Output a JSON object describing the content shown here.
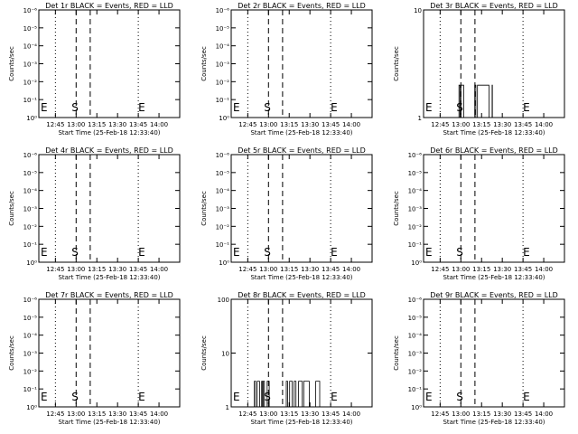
{
  "colors": {
    "background": "#ffffff",
    "axes": "#000000",
    "events": "#000000",
    "lld": "#ff0000"
  },
  "chart_data": [
    {
      "type": "line",
      "title": "Det 1r BLACK = Events, RED = LLD",
      "xlabel": "Start Time (25-Feb-18 12:33:40)",
      "ylabel": "Counts/sec",
      "x_ticks": [
        "12:45",
        "13:00",
        "13:15",
        "13:30",
        "13:45",
        "14:00"
      ],
      "y_scale": "log",
      "y_ticks": [
        "10⁰",
        "10⁻¹",
        "10⁻²",
        "10⁻³",
        "10⁻⁴",
        "10⁻⁵",
        "10⁻⁶"
      ],
      "markers": {
        "start": "S",
        "end": "E",
        "left_edge": "E"
      },
      "series": []
    },
    {
      "type": "line",
      "title": "Det 2r BLACK = Events, RED = LLD",
      "xlabel": "Start Time (25-Feb-18 12:33:40)",
      "ylabel": "Counts/sec",
      "x_ticks": [
        "12:45",
        "13:00",
        "13:15",
        "13:30",
        "13:45",
        "14:00"
      ],
      "y_scale": "log",
      "y_ticks": [
        "10⁰",
        "10⁻¹",
        "10⁻²",
        "10⁻³",
        "10⁻⁴",
        "10⁻⁵",
        "10⁻⁶"
      ],
      "markers": {
        "start": "S",
        "end": "E",
        "left_edge": "E"
      },
      "series": []
    },
    {
      "type": "line",
      "title": "Det 3r BLACK = Events, RED = LLD",
      "xlabel": "Start Time (25-Feb-18 12:33:40)",
      "ylabel": "Counts/sec",
      "x_ticks": [
        "12:45",
        "13:00",
        "13:15",
        "13:30",
        "13:45",
        "14:00"
      ],
      "y_scale": "log",
      "y_ticks": [
        "1",
        "10"
      ],
      "markers": {
        "start": "S",
        "end": "E",
        "left_edge": "E"
      },
      "series": [
        {
          "segments": [
            [
              12.95,
              13.04
            ],
            [
              13.16,
              13.38
            ]
          ],
          "low": 1,
          "high": 2
        }
      ]
    },
    {
      "type": "line",
      "title": "Det 4r BLACK = Events, RED = LLD",
      "xlabel": "Start Time (25-Feb-18 12:33:40)",
      "ylabel": "Counts/sec",
      "x_ticks": [
        "12:45",
        "13:00",
        "13:15",
        "13:30",
        "13:45",
        "14:00"
      ],
      "y_scale": "log",
      "y_ticks": [
        "10⁰",
        "10⁻¹",
        "10⁻²",
        "10⁻³",
        "10⁻⁴",
        "10⁻⁵",
        "10⁻⁶"
      ],
      "markers": {
        "start": "S",
        "end": "E",
        "left_edge": "E"
      },
      "series": []
    },
    {
      "type": "line",
      "title": "Det 5r BLACK = Events, RED = LLD",
      "xlabel": "Start Time (25-Feb-18 12:33:40)",
      "ylabel": "Counts/sec",
      "x_ticks": [
        "12:45",
        "13:00",
        "13:15",
        "13:30",
        "13:45",
        "14:00"
      ],
      "y_scale": "log",
      "y_ticks": [
        "10⁰",
        "10⁻¹",
        "10⁻²",
        "10⁻³",
        "10⁻⁴",
        "10⁻⁵",
        "10⁻⁶"
      ],
      "markers": {
        "start": "S",
        "end": "E",
        "left_edge": "E"
      },
      "series": []
    },
    {
      "type": "line",
      "title": "Det 6r BLACK = Events, RED = LLD",
      "xlabel": "Start Time (25-Feb-18 12:33:40)",
      "ylabel": "Counts/sec",
      "x_ticks": [
        "12:45",
        "13:00",
        "13:15",
        "13:30",
        "13:45",
        "14:00"
      ],
      "y_scale": "log",
      "y_ticks": [
        "10⁰",
        "10⁻¹",
        "10⁻²",
        "10⁻³",
        "10⁻⁴",
        "10⁻⁵",
        "10⁻⁶"
      ],
      "markers": {
        "start": "S",
        "end": "E",
        "left_edge": "E"
      },
      "series": []
    },
    {
      "type": "line",
      "title": "Det 7r BLACK = Events, RED = LLD",
      "xlabel": "Start Time (25-Feb-18 12:33:40)",
      "ylabel": "Counts/sec",
      "x_ticks": [
        "12:45",
        "13:00",
        "13:15",
        "13:30",
        "13:45",
        "14:00"
      ],
      "y_scale": "log",
      "y_ticks": [
        "10⁰",
        "10⁻¹",
        "10⁻²",
        "10⁻³",
        "10⁻⁴",
        "10⁻⁵",
        "10⁻⁶"
      ],
      "markers": {
        "start": "S",
        "end": "E",
        "left_edge": "E"
      },
      "series": []
    },
    {
      "type": "line",
      "title": "Det 8r BLACK = Events, RED = LLD",
      "xlabel": "Start Time (25-Feb-18 12:33:40)",
      "ylabel": "Counts/sec",
      "x_ticks": [
        "12:45",
        "13:00",
        "13:15",
        "13:30",
        "13:45",
        "14:00"
      ],
      "y_scale": "log",
      "y_ticks": [
        "1",
        "10",
        "100"
      ],
      "markers": {
        "start": "S",
        "end": "E",
        "left_edge": "E"
      },
      "series": [
        {
          "segments": [
            [
              12.8,
              13.04
            ],
            [
              13.2,
              13.63
            ]
          ],
          "low": 1,
          "high": 3
        }
      ]
    },
    {
      "type": "line",
      "title": "Det 9r BLACK = Events, RED = LLD",
      "xlabel": "Start Time (25-Feb-18 12:33:40)",
      "ylabel": "Counts/sec",
      "x_ticks": [
        "12:45",
        "13:00",
        "13:15",
        "13:30",
        "13:45",
        "14:00"
      ],
      "y_scale": "log",
      "y_ticks": [
        "10⁰",
        "10⁻¹",
        "10⁻²",
        "10⁻³",
        "10⁻⁴",
        "10⁻⁵",
        "10⁻⁶"
      ],
      "markers": {
        "start": "S",
        "end": "E",
        "left_edge": "E"
      },
      "series": []
    }
  ]
}
